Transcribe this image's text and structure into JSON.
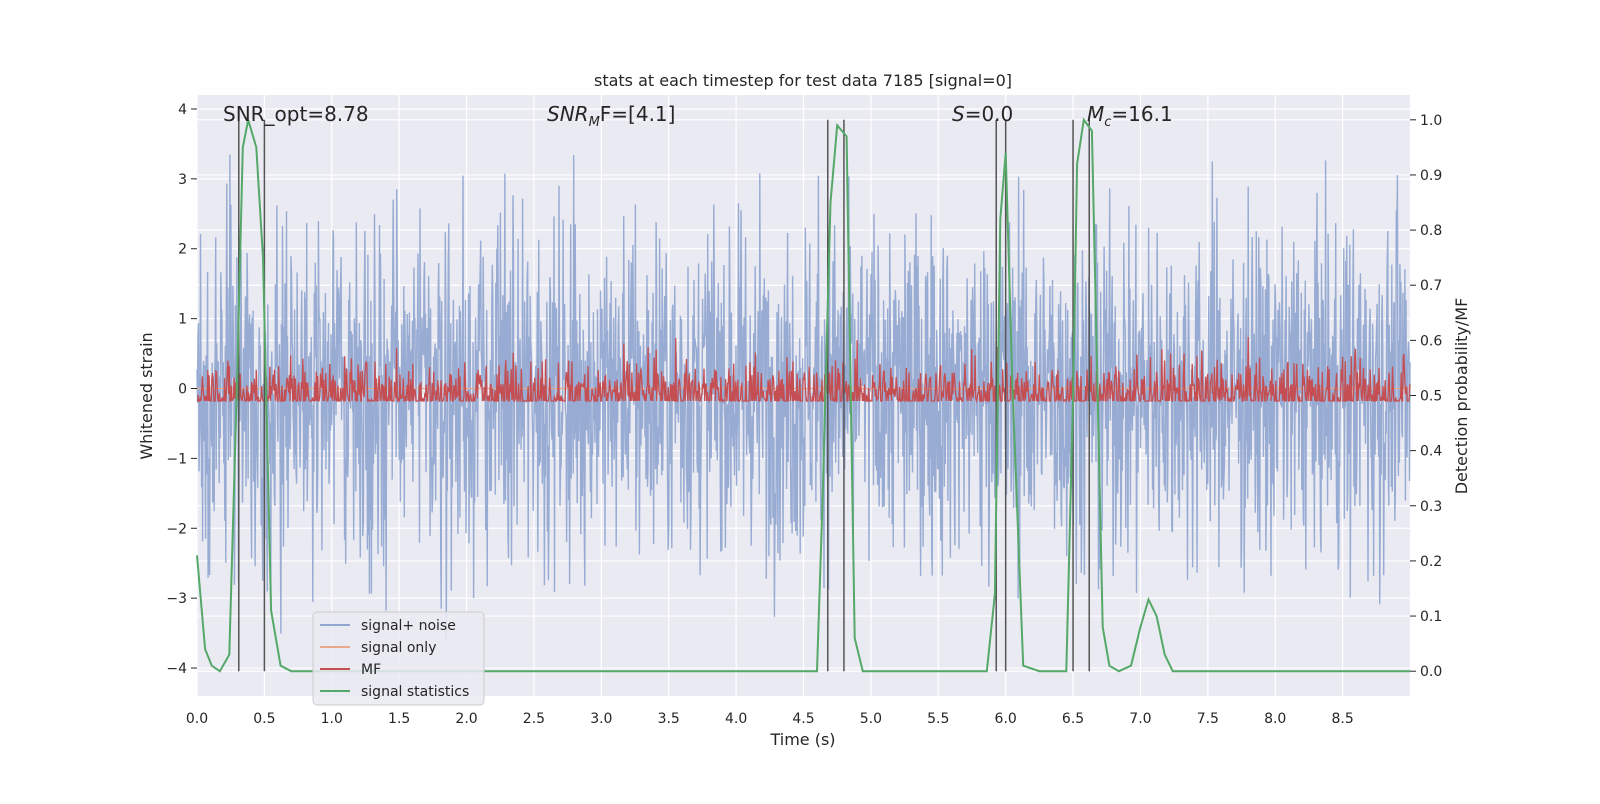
{
  "chart_data": {
    "type": "line",
    "title": "stats at each timestep for test data 7185 [signal=0]",
    "xlabel": "Time (s)",
    "ylabel": "Whitened strain",
    "y2label": "Detection probability/MF",
    "xlim": [
      0.0,
      9.0
    ],
    "ylim": [
      -4.4,
      4.2
    ],
    "y2lim": [
      -0.045,
      1.045
    ],
    "x_ticks": [
      "0.0",
      "0.5",
      "1.0",
      "1.5",
      "2.0",
      "2.5",
      "3.0",
      "3.5",
      "4.0",
      "4.5",
      "5.0",
      "5.5",
      "6.0",
      "6.5",
      "7.0",
      "7.5",
      "8.0",
      "8.5"
    ],
    "y_ticks": [
      "4",
      "3",
      "2",
      "1",
      "0",
      "−1",
      "−2",
      "−3",
      "−4"
    ],
    "y2_ticks": [
      "1.0",
      "0.9",
      "0.8",
      "0.7",
      "0.6",
      "0.5",
      "0.4",
      "0.3",
      "0.2",
      "0.1",
      "0.0"
    ],
    "grid": true,
    "annotations": {
      "snr_opt": "SNR_opt=8.78",
      "snr_mf_italic": "SNR",
      "snr_mf_sub": "M",
      "snr_mf_rest": "F=[4.1]",
      "s_italic": "S",
      "s_rest": "=0.0",
      "mc_italic": "M",
      "mc_sub": "c",
      "mc_rest": "=16.1"
    },
    "series": [
      {
        "name": "signal+ noise",
        "color": "#92a8d1",
        "description_range": [
          -3.7,
          3.5
        ],
        "typical_amplitude": 1.2
      },
      {
        "name": "signal only",
        "color": "#e8a88a",
        "x": [
          0.0,
          9.0
        ],
        "y": [
          0.0,
          0.0
        ]
      },
      {
        "name": "MF",
        "color": "#c44e52",
        "axis": "right",
        "baseline": 0.5,
        "typical_amplitude": 0.06,
        "max": 0.62
      },
      {
        "name": "signal statistics",
        "color": "#55a868",
        "axis": "right",
        "x": [
          0.0,
          0.06,
          0.11,
          0.17,
          0.24,
          0.3,
          0.34,
          0.38,
          0.44,
          0.49,
          0.55,
          0.62,
          0.7,
          1.0,
          2.0,
          3.0,
          4.0,
          4.5,
          4.6,
          4.64,
          4.7,
          4.75,
          4.82,
          4.88,
          4.94,
          5.0,
          5.5,
          5.86,
          5.92,
          5.96,
          6.0,
          6.05,
          6.13,
          6.25,
          6.38,
          6.45,
          6.5,
          6.53,
          6.58,
          6.64,
          6.72,
          6.77,
          6.84,
          6.93,
          7.0,
          7.06,
          7.12,
          7.18,
          7.24,
          7.3,
          7.4,
          7.6,
          8.0,
          8.5,
          9.0
        ],
        "y": [
          0.21,
          0.04,
          0.01,
          0.0,
          0.03,
          0.55,
          0.95,
          1.0,
          0.95,
          0.75,
          0.11,
          0.01,
          0.0,
          0.0,
          0.0,
          0.0,
          0.0,
          0.0,
          0.0,
          0.3,
          0.85,
          0.99,
          0.97,
          0.06,
          0.0,
          0.0,
          0.0,
          0.0,
          0.14,
          0.82,
          0.94,
          0.52,
          0.01,
          0.0,
          0.0,
          0.0,
          0.5,
          0.92,
          1.0,
          0.98,
          0.08,
          0.01,
          0.0,
          0.01,
          0.08,
          0.13,
          0.1,
          0.03,
          0.0,
          0.0,
          0.0,
          0.0,
          0.0,
          0.0,
          0.0
        ]
      }
    ],
    "vertical_markers": [
      0.31,
      0.5,
      4.68,
      4.8,
      5.93,
      6.0,
      6.5,
      6.62
    ],
    "legend": "lower-left"
  }
}
